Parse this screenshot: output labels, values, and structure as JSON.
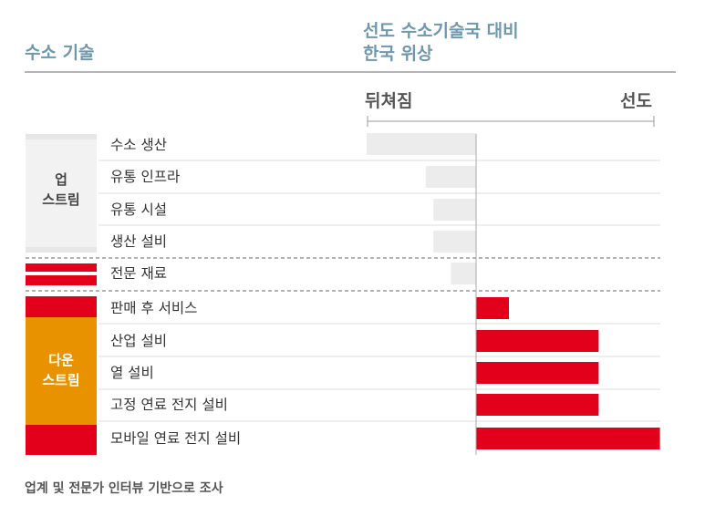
{
  "header": {
    "left_title": "수소 기술",
    "right_title_line1": "선도 수소기술국 대비",
    "right_title_line2": "한국 위상"
  },
  "scale": {
    "left_label": "뒤쳐짐",
    "right_label": "선도"
  },
  "groups": {
    "upstream_line1": "업",
    "upstream_line2": "스트림",
    "downstream_line1": "다운",
    "downstream_line2": "스트림"
  },
  "colors": {
    "accent_red": "#e3001b",
    "accent_orange": "#e89200",
    "neutral_gray": "#ececec",
    "header_blue": "#6f98ad"
  },
  "footnote": "업계 및 전문가 인터뷰 기반으로 조사",
  "chart_data": {
    "type": "bar",
    "orientation": "horizontal",
    "categories": [
      "수소 생산",
      "유통 인프라",
      "유통 시설",
      "생산 설비",
      "전문 재료",
      "판매 후 서비스",
      "산업 설비",
      "열 설비",
      "고정 연료 전지 설비",
      "모바일 연료 전지 설비"
    ],
    "values": [
      -1.0,
      -0.46,
      -0.39,
      -0.39,
      -0.23,
      0.3,
      1.12,
      1.12,
      1.12,
      1.68
    ],
    "xlim": [
      -1.0,
      1.68
    ],
    "title": "",
    "xlabel": "",
    "ylabel": ""
  }
}
